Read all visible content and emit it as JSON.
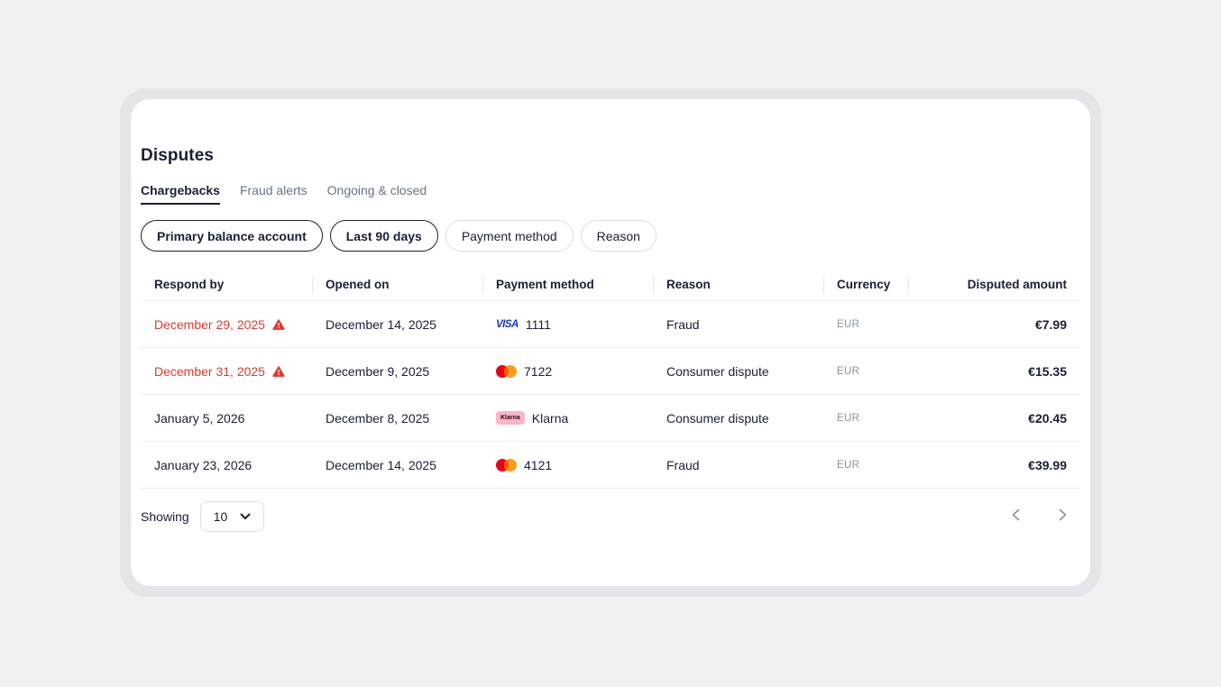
{
  "page": {
    "title": "Disputes"
  },
  "tabs": [
    {
      "label": "Chargebacks",
      "active": true
    },
    {
      "label": "Fraud alerts",
      "active": false
    },
    {
      "label": "Ongoing & closed",
      "active": false
    }
  ],
  "filters": [
    {
      "label": "Primary balance account",
      "applied": true
    },
    {
      "label": "Last 90 days",
      "applied": true
    },
    {
      "label": "Payment method",
      "applied": false
    },
    {
      "label": "Reason",
      "applied": false
    }
  ],
  "table": {
    "columns": [
      "Respond by",
      "Opened on",
      "Payment method",
      "Reason",
      "Currency",
      "Disputed amount"
    ],
    "rows": [
      {
        "respond_by": "December 29, 2025",
        "overdue": true,
        "opened_on": "December 14, 2025",
        "payment_brand": "visa",
        "payment_label": "1111",
        "reason": "Fraud",
        "currency": "EUR",
        "disputed_amount": "€7.99"
      },
      {
        "respond_by": "December 31, 2025",
        "overdue": true,
        "opened_on": "December 9, 2025",
        "payment_brand": "mastercard",
        "payment_label": "7122",
        "reason": "Consumer dispute",
        "currency": "EUR",
        "disputed_amount": "€15.35"
      },
      {
        "respond_by": "January 5, 2026",
        "overdue": false,
        "opened_on": "December 8, 2025",
        "payment_brand": "klarna",
        "payment_label": "Klarna",
        "reason": "Consumer dispute",
        "currency": "EUR",
        "disputed_amount": "€20.45"
      },
      {
        "respond_by": "January 23, 2026",
        "overdue": false,
        "opened_on": "December 14, 2025",
        "payment_brand": "mastercard",
        "payment_label": "4121",
        "reason": "Fraud",
        "currency": "EUR",
        "disputed_amount": "€39.99"
      }
    ]
  },
  "footer": {
    "showing_label": "Showing",
    "page_size": "10"
  },
  "icons": {
    "warning": "warning-triangle-icon",
    "visa_wordmark": "VISA",
    "klarna_badge_text": "Klarna",
    "dropdown_chevron": "chevron-down-icon",
    "prev": "chevron-left-icon",
    "next": "chevron-right-icon"
  },
  "colors": {
    "danger": "#e5372c",
    "text": "#1a1f36",
    "muted": "#687385",
    "currency_muted": "#8792a2",
    "visa_blue": "#1434cb",
    "mastercard_red": "#eb001b",
    "mastercard_orange": "#f79e1b",
    "mastercard_overlap": "#ff5f00",
    "klarna_pink": "#ffb3c7",
    "card_bg": "#ffffff",
    "page_bg": "#eef0f2"
  }
}
